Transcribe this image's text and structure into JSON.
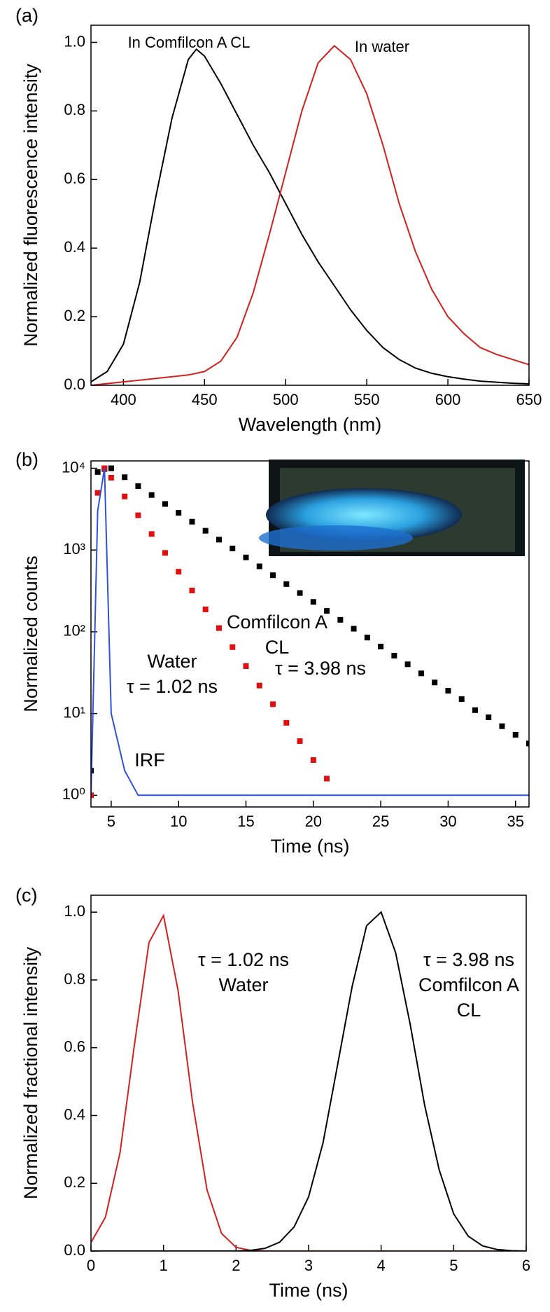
{
  "chart_data": [
    {
      "type": "line",
      "panel_label": "(a)",
      "xlabel": "Wavelength (nm)",
      "ylabel": "Normalized fluorescence intensity",
      "x": [
        380,
        390,
        400,
        410,
        420,
        430,
        440,
        445,
        450,
        460,
        470,
        480,
        490,
        500,
        510,
        520,
        530,
        540,
        550,
        560,
        570,
        580,
        590,
        600,
        610,
        620,
        630,
        640,
        650
      ],
      "series": [
        {
          "name": "In Comfilcon A CL",
          "color": "#000000",
          "values": [
            0.01,
            0.04,
            0.12,
            0.3,
            0.55,
            0.78,
            0.95,
            0.98,
            0.96,
            0.88,
            0.79,
            0.7,
            0.62,
            0.53,
            0.44,
            0.36,
            0.29,
            0.22,
            0.16,
            0.11,
            0.075,
            0.05,
            0.035,
            0.025,
            0.018,
            0.012,
            0.009,
            0.006,
            0.004
          ]
        },
        {
          "name": "In water",
          "color": "#d42020",
          "values": [
            0,
            0.005,
            0.01,
            0.015,
            0.02,
            0.025,
            0.03,
            0.035,
            0.04,
            0.07,
            0.14,
            0.27,
            0.44,
            0.62,
            0.8,
            0.94,
            0.99,
            0.95,
            0.85,
            0.7,
            0.53,
            0.39,
            0.28,
            0.2,
            0.15,
            0.11,
            0.09,
            0.075,
            0.06
          ]
        }
      ],
      "xlim": [
        380,
        650
      ],
      "xticks": [
        400,
        450,
        500,
        550,
        600,
        650
      ],
      "ylim": [
        0,
        1.05
      ],
      "yticks": [
        {
          "value": 0,
          "label": "0.0"
        },
        {
          "value": 0.2,
          "label": "0.2"
        },
        {
          "value": 0.4,
          "label": "0.4"
        },
        {
          "value": 0.6,
          "label": "0.6"
        },
        {
          "value": 0.8,
          "label": "0.8"
        },
        {
          "value": 1,
          "label": "1.0"
        }
      ]
    },
    {
      "type": "scatter",
      "panel_label": "(b)",
      "xlabel": "Time (ns)",
      "ylabel": "Normalized counts",
      "log_y": true,
      "x": [
        3.5,
        4,
        4.5,
        5,
        6,
        7,
        8,
        9,
        10,
        11,
        12,
        13,
        14,
        15,
        16,
        17,
        18,
        19,
        20,
        21,
        22,
        23,
        24,
        25,
        26,
        27,
        28,
        29,
        30,
        31,
        32,
        33,
        34,
        35,
        36
      ],
      "series": [
        {
          "color": "#000000",
          "style": "square",
          "values": [
            2,
            9000,
            9800,
            10000,
            7780,
            6050,
            4710,
            3660,
            2850,
            2220,
            1720,
            1340,
            1045,
            812,
            632,
            492,
            383,
            298,
            232,
            180,
            140,
            109,
            85,
            66,
            51,
            40,
            31,
            24,
            19,
            15,
            11,
            9,
            7,
            5.5,
            4.3
          ]
        },
        {
          "color": "#e01010",
          "style": "square",
          "values": [
            1,
            5000,
            10000,
            7670,
            4520,
            2660,
            1570,
            923,
            543,
            320,
            188,
            111,
            65,
            38,
            22,
            13,
            7.7,
            4.6,
            2.7,
            1.6,
            null,
            null,
            null,
            null,
            null,
            null,
            null,
            null,
            null,
            null,
            null,
            null,
            null,
            null,
            null
          ]
        },
        {
          "color": "#3050e0",
          "style": "line",
          "values": [
            1,
            3000,
            10000,
            10,
            2,
            1,
            1,
            1,
            1,
            1,
            1,
            1,
            1,
            1,
            1,
            1,
            1,
            1,
            1,
            1,
            1,
            1,
            1,
            1,
            1,
            1,
            1,
            1,
            1,
            1,
            1,
            1,
            1,
            1,
            1
          ]
        }
      ],
      "annotations": [
        {
          "text": "Comfilcon A",
          "color": "#000000"
        },
        {
          "text": "CL",
          "color": "#000000"
        },
        {
          "text": "τ = 3.98 ns",
          "color": "#000000"
        },
        {
          "text": "Water",
          "color": "#e01010"
        },
        {
          "text": "τ = 1.02 ns",
          "color": "#e01010"
        },
        {
          "text": "IRF",
          "color": "#3050e0"
        }
      ],
      "xlim": [
        3.5,
        36
      ],
      "xticks": [
        5,
        10,
        15,
        20,
        25,
        30,
        35
      ],
      "ylim": [
        0.72,
        12300
      ],
      "yticks": [
        {
          "value": 1,
          "label": "10⁰"
        },
        {
          "value": 10,
          "label": "10¹"
        },
        {
          "value": 100,
          "label": "10²"
        },
        {
          "value": 1000,
          "label": "10³"
        },
        {
          "value": 10000,
          "label": "10⁴"
        }
      ]
    },
    {
      "type": "line",
      "panel_label": "(c)",
      "xlabel": "Time (ns)",
      "ylabel": "Normalized fractional intensity",
      "x": [
        0,
        0.2,
        0.4,
        0.6,
        0.8,
        1,
        1.2,
        1.4,
        1.6,
        1.8,
        2,
        2.2,
        2.4,
        2.6,
        2.8,
        3,
        3.2,
        3.4,
        3.6,
        3.8,
        4,
        4.2,
        4.4,
        4.6,
        4.8,
        5,
        5.2,
        5.4,
        5.6,
        5.8,
        6
      ],
      "series": [
        {
          "color": "#d42020",
          "values": [
            0.025,
            0.1,
            0.29,
            0.61,
            0.91,
            0.99,
            0.77,
            0.44,
            0.18,
            0.052,
            0.011,
            0.002,
            0,
            0,
            0,
            0,
            0,
            0,
            0,
            0,
            0,
            0,
            0,
            0,
            0,
            0,
            0,
            0,
            0,
            0,
            0
          ]
        },
        {
          "color": "#000000",
          "values": [
            0,
            0,
            0,
            0,
            0,
            0,
            0,
            0,
            0,
            0,
            0,
            0.002,
            0.008,
            0.026,
            0.071,
            0.16,
            0.32,
            0.55,
            0.78,
            0.96,
            1.0,
            0.88,
            0.67,
            0.43,
            0.24,
            0.11,
            0.044,
            0.015,
            0.0045,
            0.001,
            0
          ]
        }
      ],
      "annotations": [
        {
          "text": "τ = 1.02 ns",
          "color": "#d42020"
        },
        {
          "text": "Water",
          "color": "#d42020"
        },
        {
          "text": "τ = 3.98 ns",
          "color": "#000000"
        },
        {
          "text": "Comfilcon A",
          "color": "#000000"
        },
        {
          "text": "CL",
          "color": "#000000"
        }
      ],
      "xlim": [
        0,
        6
      ],
      "xticks": [
        0,
        1,
        2,
        3,
        4,
        5,
        6
      ],
      "ylim": [
        0,
        1.05
      ],
      "yticks": [
        {
          "value": 0,
          "label": "0.0"
        },
        {
          "value": 0.2,
          "label": "0.2"
        },
        {
          "value": 0.4,
          "label": "0.4"
        },
        {
          "value": 0.6,
          "label": "0.6"
        },
        {
          "value": 0.8,
          "label": "0.8"
        },
        {
          "value": 1,
          "label": "1.0"
        }
      ]
    }
  ]
}
